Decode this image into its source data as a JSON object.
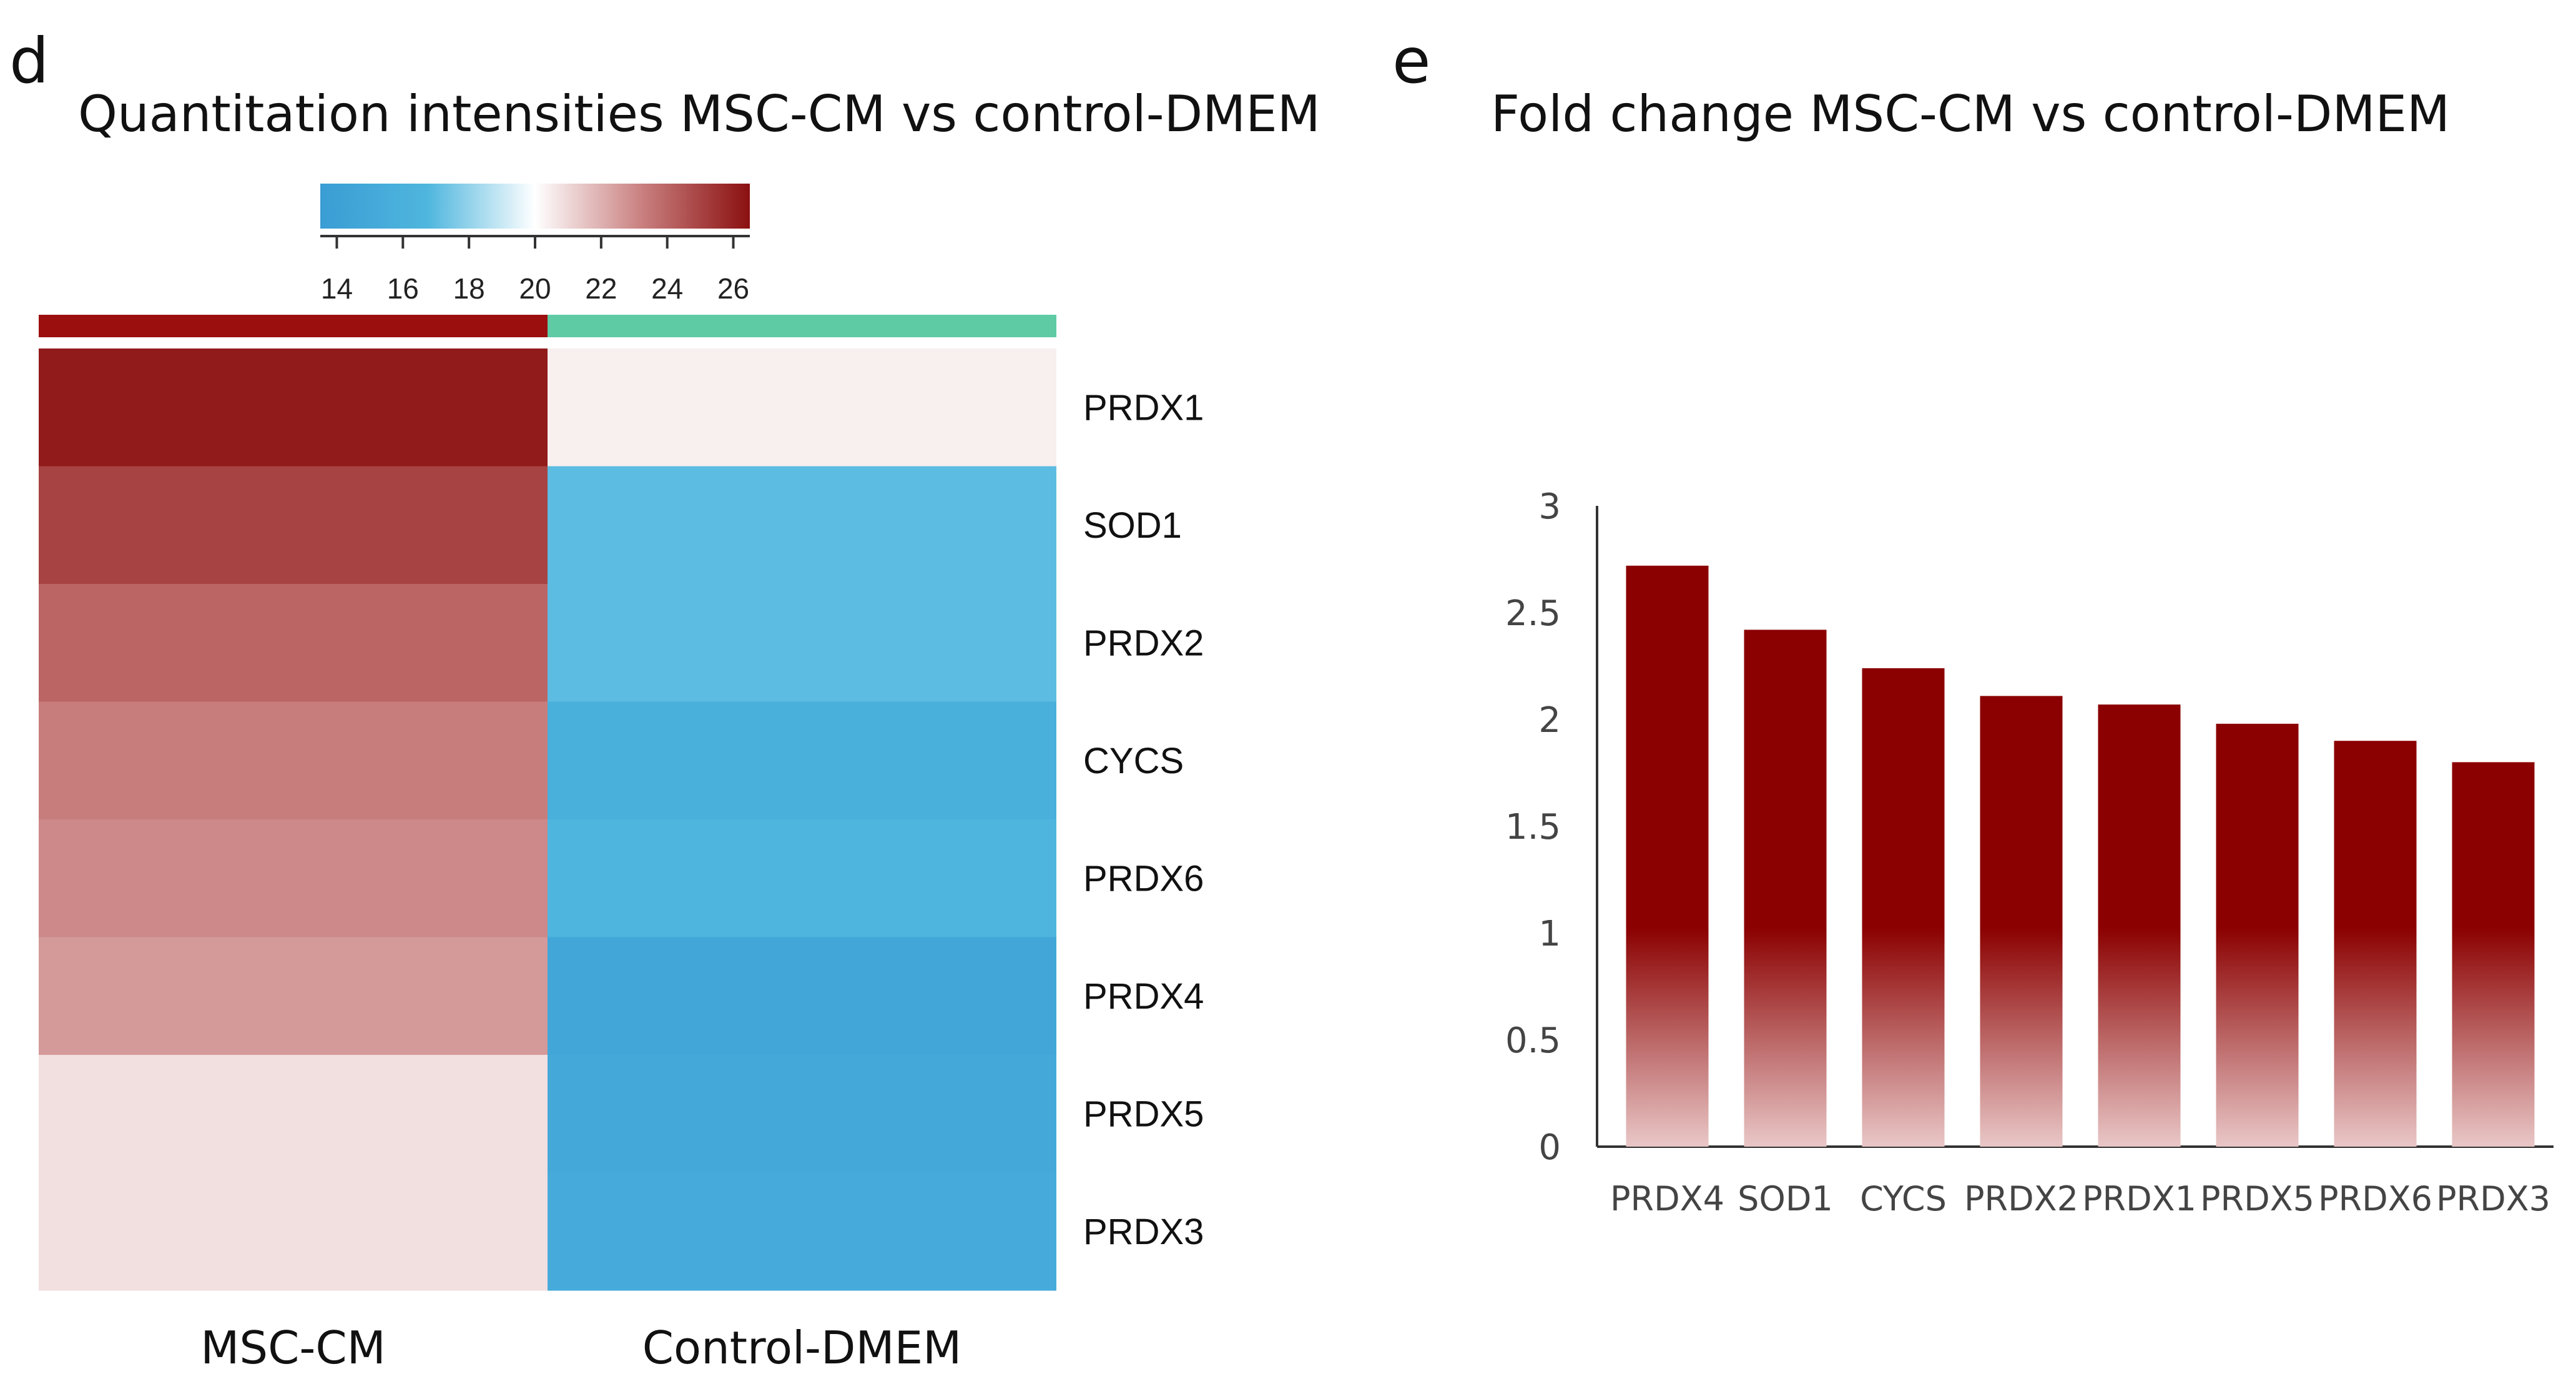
{
  "panels": {
    "heatmap_letter": "d",
    "bar_letter": "e"
  },
  "chart_data": [
    {
      "type": "heatmap",
      "title": "Quantitation intensities MSC-CM vs control-DMEM",
      "columns": [
        "MSC-CM",
        "Control-DMEM"
      ],
      "column_colors": [
        "#9b0f0f",
        "#5ecba4"
      ],
      "rows": [
        "PRDX1",
        "SOD1",
        "PRDX2",
        "CYCS",
        "PRDX6",
        "PRDX4",
        "PRDX5",
        "PRDX3"
      ],
      "values": [
        [
          26.2,
          20.4
        ],
        [
          25.0,
          17.0
        ],
        [
          24.0,
          17.0
        ],
        [
          23.3,
          15.8
        ],
        [
          23.0,
          16.6
        ],
        [
          22.6,
          14.8
        ],
        [
          20.8,
          15.0
        ],
        [
          20.8,
          15.3
        ]
      ],
      "colorbar": {
        "range": [
          13.5,
          26.5
        ],
        "ticks": [
          14,
          16,
          18,
          20,
          22,
          24,
          26
        ],
        "colors": [
          "#3a9dd4",
          "#4fb6de",
          "#ffffff",
          "#c97f7f",
          "#8b1010"
        ]
      }
    },
    {
      "type": "bar",
      "title": "Fold change MSC-CM vs control-DMEM",
      "categories": [
        "PRDX4",
        "SOD1",
        "CYCS",
        "PRDX2",
        "PRDX1",
        "PRDX5",
        "PRDX6",
        "PRDX3"
      ],
      "values": [
        2.72,
        2.42,
        2.24,
        2.11,
        2.07,
        1.98,
        1.9,
        1.8
      ],
      "ylim": [
        0,
        3
      ],
      "yticks": [
        "0",
        "0.5",
        "1",
        "1.5",
        "2",
        "2.5",
        "3"
      ],
      "xlabel": "",
      "ylabel": "",
      "bar_color": "#8b0000"
    }
  ]
}
